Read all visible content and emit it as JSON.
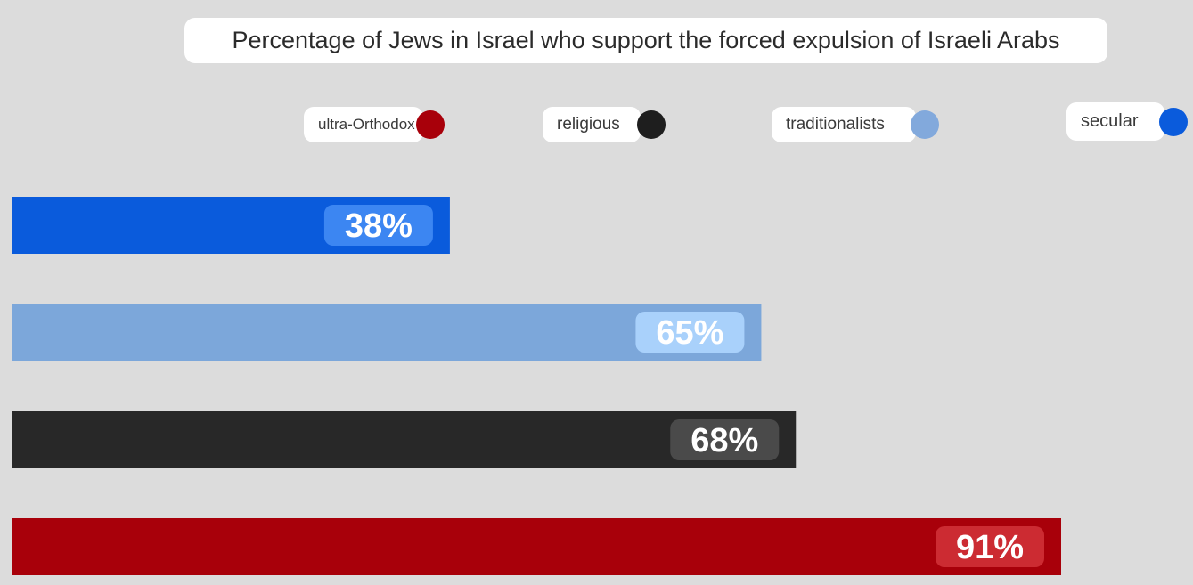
{
  "chart_data": {
    "type": "bar",
    "orientation": "horizontal",
    "title": "Percentage of Jews in Israel who support the forced expulsion of Israeli Arabs",
    "xlim": [
      0,
      100
    ],
    "grid": false,
    "legend_position": "top",
    "series": [
      {
        "name": "secular",
        "value": 38,
        "label": "38%",
        "color": "#0a5bdc",
        "label_bg": "#3c86f2"
      },
      {
        "name": "traditionalists",
        "value": 65,
        "label": "65%",
        "color": "#7ca7da",
        "label_bg": "#a9d1fb"
      },
      {
        "name": "religious",
        "value": 68,
        "label": "68%",
        "color": "#282828",
        "label_bg": "#4a4a4a"
      },
      {
        "name": "ultra-Orthodox",
        "value": 91,
        "label": "91%",
        "color": "#a8000a",
        "label_bg": "#cc2b32"
      }
    ],
    "legend": [
      {
        "name": "ultra-Orthodox",
        "color": "#a8000a"
      },
      {
        "name": "religious",
        "color": "#1e1e1e"
      },
      {
        "name": "traditionalists",
        "color": "#82a9dc"
      },
      {
        "name": "secular",
        "color": "#0a5bdc"
      }
    ]
  }
}
